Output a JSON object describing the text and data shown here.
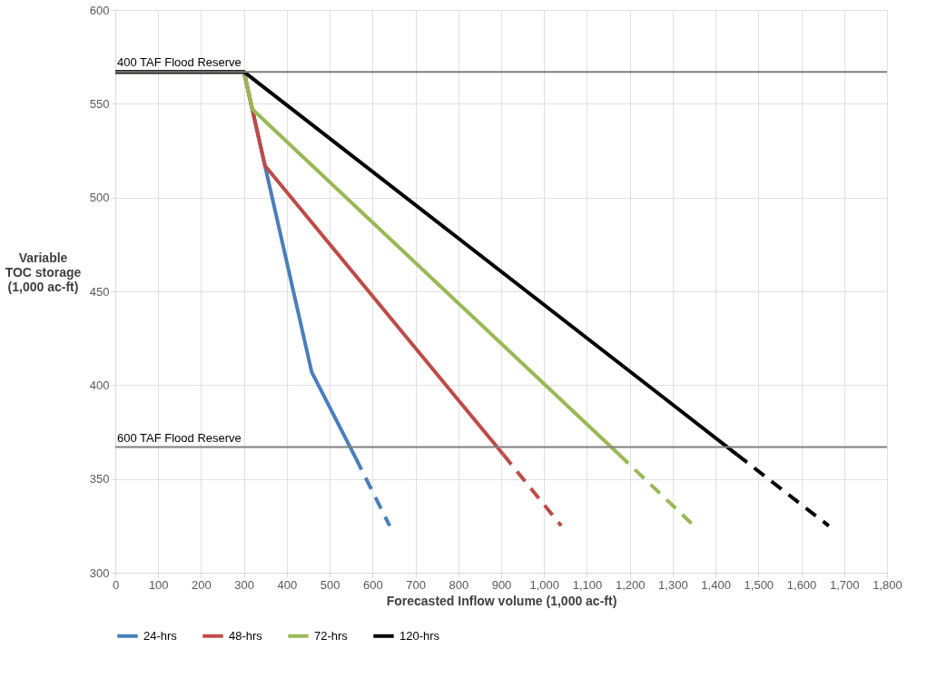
{
  "chart_data": {
    "type": "line",
    "xlabel": "Forecasted Inflow volume (1,000 ac-ft)",
    "ylabel": "Variable\nTOC storage\n(1,000 ac-ft)",
    "xlim": [
      0,
      1800
    ],
    "xticks": [
      0,
      100,
      200,
      300,
      400,
      500,
      600,
      700,
      800,
      900,
      {
        "value": 1000,
        "label": "1,000"
      },
      {
        "value": 1100,
        "label": "1,100"
      },
      {
        "value": 1200,
        "label": "1,200"
      },
      {
        "value": 1300,
        "label": "1,300"
      },
      {
        "value": 1400,
        "label": "1,400"
      },
      {
        "value": 1500,
        "label": "1,500"
      },
      {
        "value": 1600,
        "label": "1,600"
      },
      {
        "value": 1700,
        "label": "1,700"
      },
      {
        "value": 1800,
        "label": "1,800"
      }
    ],
    "ylim": [
      300,
      600
    ],
    "yticks": [
      300,
      350,
      400,
      450,
      500,
      550,
      600
    ],
    "grid": true,
    "legend": "bottom",
    "marker": "none",
    "series": [
      {
        "name": "24-hrs",
        "color": "#4a7ebb",
        "line_style": "solid",
        "x": [
          0,
          300,
          349,
          458,
          561
        ],
        "values": [
          567,
          567,
          517,
          407,
          361
        ]
      },
      {
        "name": "48-hrs",
        "color": "#be4b48",
        "line_style": "solid",
        "x": [
          0,
          300,
          349,
          905
        ],
        "values": [
          567,
          567,
          517,
          363
        ]
      },
      {
        "name": "72-hrs",
        "color": "#98b954",
        "line_style": "solid",
        "x": [
          0,
          300,
          320,
          1175
        ],
        "values": [
          567,
          567,
          547,
          363
        ]
      },
      {
        "name": "120-hrs",
        "color": "#000000",
        "line_style": "solid",
        "x": [
          0,
          300,
          1450
        ],
        "values": [
          567,
          567,
          363
        ]
      },
      {
        "color": "#4a7ebb",
        "line_style": "dashed",
        "x": [
          561,
          640
        ],
        "values": [
          361,
          325
        ]
      },
      {
        "color": "#be4b48",
        "line_style": "dashed",
        "x": [
          905,
          1040
        ],
        "values": [
          363,
          325
        ]
      },
      {
        "color": "#98b954",
        "line_style": "dashed",
        "x": [
          1175,
          1350
        ],
        "values": [
          363,
          325
        ]
      },
      {
        "color": "#000000",
        "line_style": "dashed",
        "x": [
          1450,
          1664
        ],
        "values": [
          363,
          325
        ]
      }
    ],
    "ref_lines": [
      {
        "axis": "y",
        "value": 567,
        "label": "400 TAF Flood Reserve",
        "color": "#808080"
      },
      {
        "axis": "y",
        "value": 367,
        "label": "600 TAF Flood Reserve",
        "color": "#808080"
      }
    ]
  }
}
